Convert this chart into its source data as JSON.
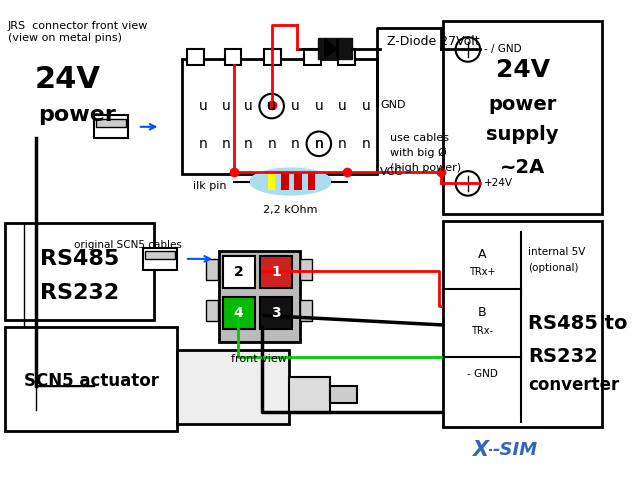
{
  "bg": "#ffffff",
  "red": "#ff0000",
  "green": "#00cc00",
  "black": "#000000",
  "blue": "#0055ff",
  "band_colors": [
    "#ffff00",
    "#cc0000",
    "#cc0000",
    "#cc0000"
  ],
  "texts": {
    "jrs1": "JRS  connector front view",
    "jrs2": "(view on metal pins)",
    "24v": "24V",
    "power": "power",
    "ilk_pin": "ilk pin",
    "resistor": "2,2 kOhm",
    "gnd": "GND",
    "vcc": "VCC",
    "use_cables": "use cables",
    "big_phi": "with big Ø",
    "high_power": "(high power)",
    "ps_24v": "24V",
    "ps_power": "power",
    "ps_supply": "supply",
    "ps_2a": "~2A",
    "ps_neg": "- / GND",
    "ps_pos": "+24V",
    "int5v": "internal 5V",
    "optional": "(optional)",
    "rs485to": "RS485 to",
    "rs232": "RS232",
    "converter": "converter",
    "a_trx": "A",
    "a_trxp": "TRx+",
    "b_trx": "B",
    "b_trxm": "TRx-",
    "gnd_row": "- GND",
    "front_view": "front view",
    "rs485": "RS485",
    "rs232b": "RS232",
    "scn5": "SCN5 actuator",
    "orig": "original SCN5 cables",
    "zdiode": "Z-Diode 27Volt"
  }
}
